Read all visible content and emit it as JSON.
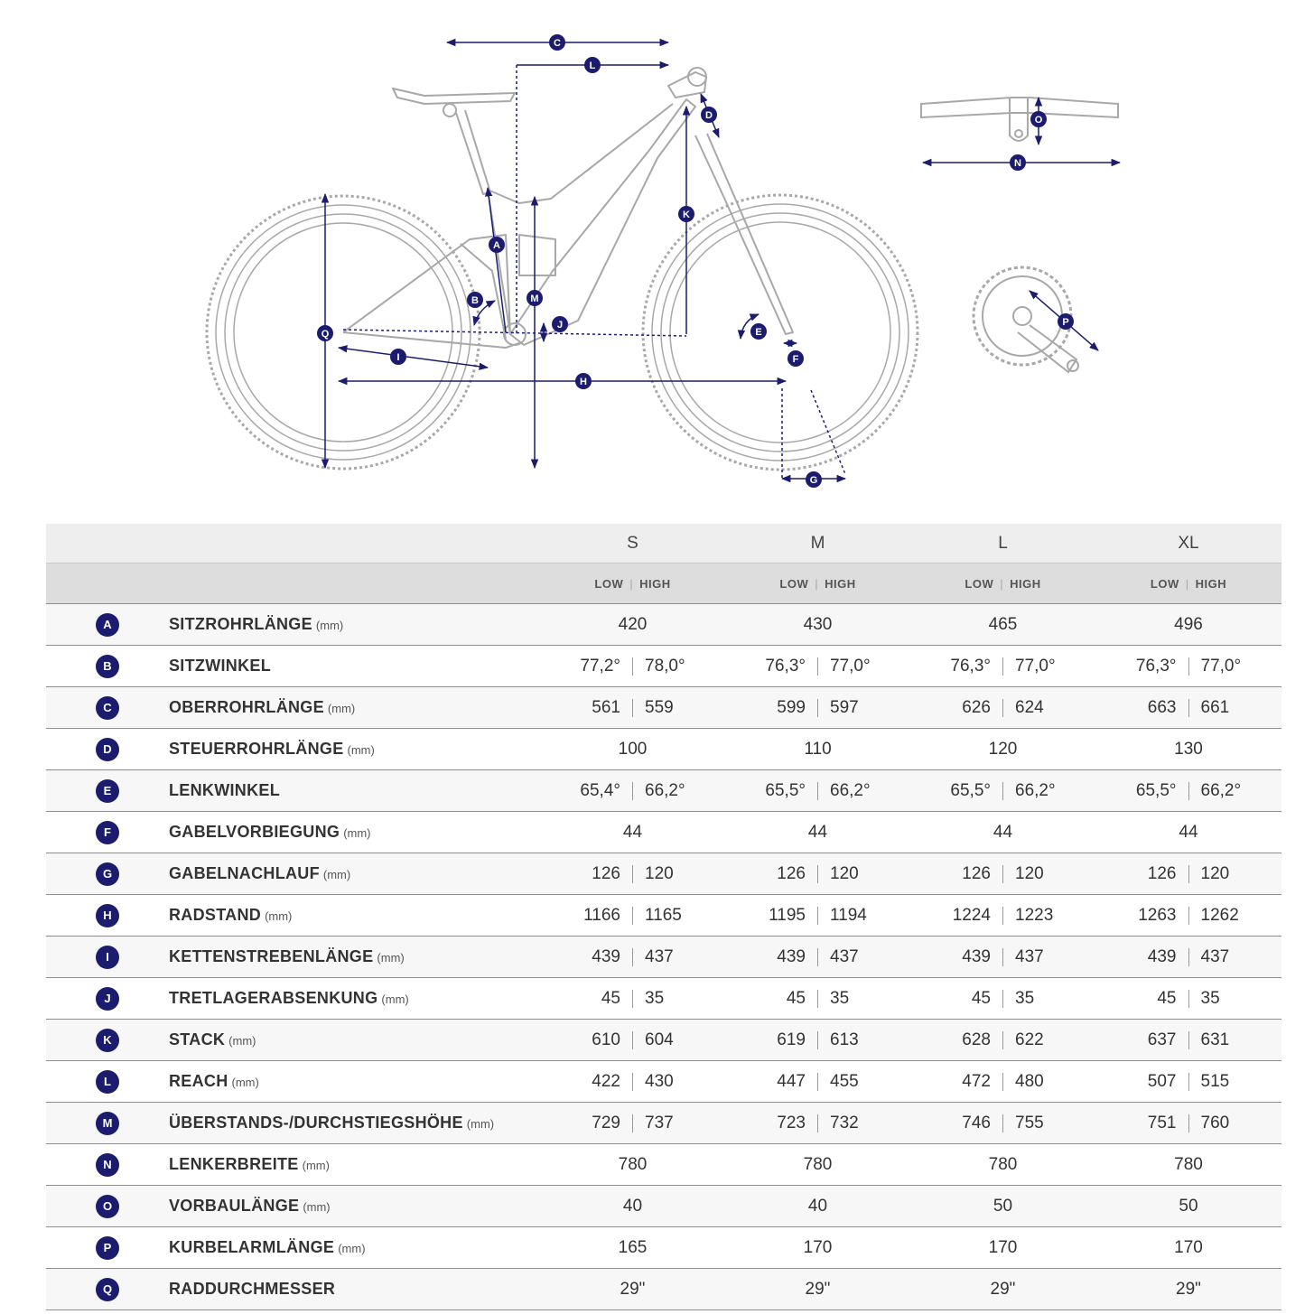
{
  "diagram_markers": [
    "A",
    "B",
    "C",
    "D",
    "E",
    "F",
    "G",
    "H",
    "I",
    "J",
    "K",
    "L",
    "M",
    "N",
    "O",
    "P",
    "Q"
  ],
  "colors": {
    "accent": "#1c1c6e",
    "line": "#999999",
    "header": "#eeeeee",
    "subheader": "#dddddd"
  },
  "sizes": [
    "S",
    "M",
    "L",
    "XL"
  ],
  "low_label": "LOW",
  "high_label": "HIGH",
  "rows": [
    {
      "key": "A",
      "label": "SITZROHRLÄNGE",
      "unit": "(mm)",
      "values": [
        [
          "420"
        ],
        [
          "430"
        ],
        [
          "465"
        ],
        [
          "496"
        ]
      ]
    },
    {
      "key": "B",
      "label": "SITZWINKEL",
      "unit": "",
      "values": [
        [
          "77,2°",
          "78,0°"
        ],
        [
          "76,3°",
          "77,0°"
        ],
        [
          "76,3°",
          "77,0°"
        ],
        [
          "76,3°",
          "77,0°"
        ]
      ]
    },
    {
      "key": "C",
      "label": "OBERROHRLÄNGE",
      "unit": "(mm)",
      "values": [
        [
          "561",
          "559"
        ],
        [
          "599",
          "597"
        ],
        [
          "626",
          "624"
        ],
        [
          "663",
          "661"
        ]
      ]
    },
    {
      "key": "D",
      "label": "STEUERROHRLÄNGE",
      "unit": "(mm)",
      "values": [
        [
          "100"
        ],
        [
          "110"
        ],
        [
          "120"
        ],
        [
          "130"
        ]
      ]
    },
    {
      "key": "E",
      "label": "LENKWINKEL",
      "unit": "",
      "values": [
        [
          "65,4°",
          "66,2°"
        ],
        [
          "65,5°",
          "66,2°"
        ],
        [
          "65,5°",
          "66,2°"
        ],
        [
          "65,5°",
          "66,2°"
        ]
      ]
    },
    {
      "key": "F",
      "label": "GABELVORBIEGUNG",
      "unit": "(mm)",
      "values": [
        [
          "44"
        ],
        [
          "44"
        ],
        [
          "44"
        ],
        [
          "44"
        ]
      ]
    },
    {
      "key": "G",
      "label": "GABELNACHLAUF",
      "unit": "(mm)",
      "values": [
        [
          "126",
          "120"
        ],
        [
          "126",
          "120"
        ],
        [
          "126",
          "120"
        ],
        [
          "126",
          "120"
        ]
      ]
    },
    {
      "key": "H",
      "label": "RADSTAND",
      "unit": "(mm)",
      "values": [
        [
          "1166",
          "1165"
        ],
        [
          "1195",
          "1194"
        ],
        [
          "1224",
          "1223"
        ],
        [
          "1263",
          "1262"
        ]
      ]
    },
    {
      "key": "I",
      "label": "KETTENSTREBENLÄNGE",
      "unit": "(mm)",
      "values": [
        [
          "439",
          "437"
        ],
        [
          "439",
          "437"
        ],
        [
          "439",
          "437"
        ],
        [
          "439",
          "437"
        ]
      ]
    },
    {
      "key": "J",
      "label": "TRETLAGERABSENKUNG",
      "unit": "(mm)",
      "values": [
        [
          "45",
          "35"
        ],
        [
          "45",
          "35"
        ],
        [
          "45",
          "35"
        ],
        [
          "45",
          "35"
        ]
      ]
    },
    {
      "key": "K",
      "label": "STACK",
      "unit": "(mm)",
      "values": [
        [
          "610",
          "604"
        ],
        [
          "619",
          "613"
        ],
        [
          "628",
          "622"
        ],
        [
          "637",
          "631"
        ]
      ]
    },
    {
      "key": "L",
      "label": "REACH",
      "unit": "(mm)",
      "values": [
        [
          "422",
          "430"
        ],
        [
          "447",
          "455"
        ],
        [
          "472",
          "480"
        ],
        [
          "507",
          "515"
        ]
      ]
    },
    {
      "key": "M",
      "label": "ÜBERSTANDS-/DURCHSTIEGSHÖHE",
      "unit": "(mm)",
      "values": [
        [
          "729",
          "737"
        ],
        [
          "723",
          "732"
        ],
        [
          "746",
          "755"
        ],
        [
          "751",
          "760"
        ]
      ]
    },
    {
      "key": "N",
      "label": "LENKERBREITE",
      "unit": "(mm)",
      "values": [
        [
          "780"
        ],
        [
          "780"
        ],
        [
          "780"
        ],
        [
          "780"
        ]
      ]
    },
    {
      "key": "O",
      "label": "VORBAULÄNGE",
      "unit": "(mm)",
      "values": [
        [
          "40"
        ],
        [
          "40"
        ],
        [
          "50"
        ],
        [
          "50"
        ]
      ]
    },
    {
      "key": "P",
      "label": "KURBELARMLÄNGE",
      "unit": "(mm)",
      "values": [
        [
          "165"
        ],
        [
          "170"
        ],
        [
          "170"
        ],
        [
          "170"
        ]
      ]
    },
    {
      "key": "Q",
      "label": "RADDURCHMESSER",
      "unit": "",
      "values": [
        [
          "29\""
        ],
        [
          "29\""
        ],
        [
          "29\""
        ],
        [
          "29\""
        ]
      ]
    }
  ]
}
